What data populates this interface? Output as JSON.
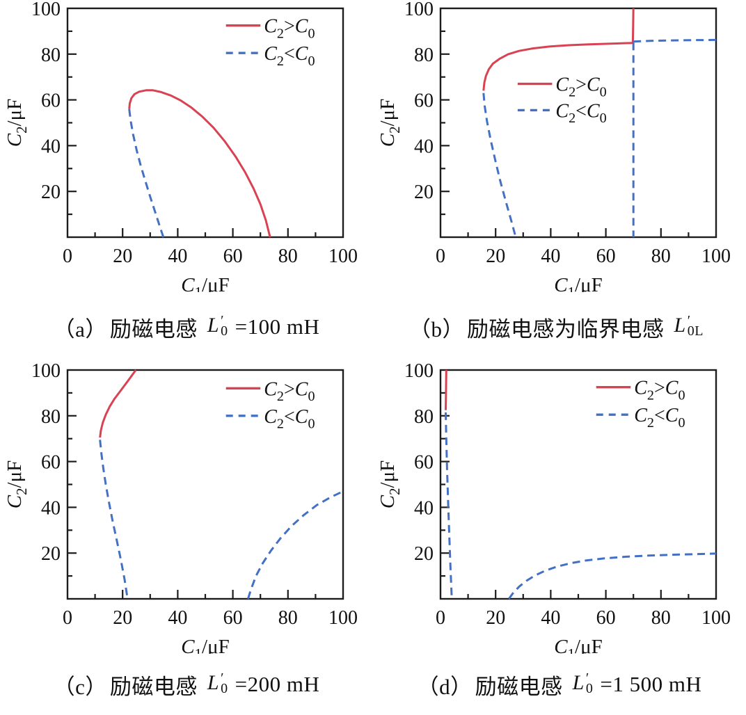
{
  "colors": {
    "red": "#d84252",
    "blue": "#4470c4",
    "axis": "#1c1c1c",
    "text": "#111111",
    "background": "#ffffff"
  },
  "axes": {
    "xlabel_parts": [
      {
        "t": "C",
        "i": 1
      },
      {
        "t": "1",
        "s": 1
      },
      {
        "t": "/μF"
      }
    ],
    "ylabel_parts": [
      {
        "t": "C",
        "i": 1
      },
      {
        "t": "2",
        "s": 1
      },
      {
        "t": "/μF"
      }
    ],
    "xticks": [
      0,
      20,
      40,
      60,
      80,
      100
    ],
    "yticks": [
      20,
      40,
      60,
      80,
      100
    ],
    "minor_step": 10,
    "xlim": [
      0,
      100
    ],
    "ylim": [
      0,
      100
    ],
    "grid": false
  },
  "legend": {
    "entries": [
      {
        "key": "gt",
        "parts": [
          {
            "t": "C",
            "i": 1
          },
          {
            "t": "2",
            "s": 1
          },
          {
            "t": ">"
          },
          {
            "t": "C",
            "i": 1
          },
          {
            "t": "0",
            "s": 1
          }
        ]
      },
      {
        "key": "lt",
        "parts": [
          {
            "t": "C",
            "i": 1
          },
          {
            "t": "2",
            "s": 1
          },
          {
            "t": "<"
          },
          {
            "t": "C",
            "i": 1
          },
          {
            "t": "0",
            "s": 1
          }
        ]
      }
    ]
  },
  "chart_data": [
    {
      "id": "a",
      "type": "line",
      "legend_pos": {
        "x": 0.575,
        "rows": [
          0.075,
          0.195
        ]
      },
      "series": [
        {
          "key": "gt",
          "color": "red",
          "dash": false,
          "paths": [
            [
              [
                22.4,
                56
              ],
              [
                22.6,
                58.5
              ],
              [
                23.2,
                60.8
              ],
              [
                24.3,
                62.5
              ],
              [
                26,
                63.6
              ],
              [
                28.5,
                64.2
              ],
              [
                31,
                64.2
              ],
              [
                34,
                63.4
              ],
              [
                37.5,
                61.9
              ],
              [
                41,
                59.8
              ],
              [
                45,
                56.6
              ],
              [
                49,
                52.6
              ],
              [
                53,
                47.8
              ],
              [
                57,
                42
              ],
              [
                61,
                35.2
              ],
              [
                64.5,
                28.3
              ],
              [
                67.5,
                21.3
              ],
              [
                70,
                14.4
              ],
              [
                72,
                7.3
              ],
              [
                73.5,
                0
              ]
            ]
          ]
        },
        {
          "key": "lt",
          "color": "blue",
          "dash": true,
          "paths": [
            [
              [
                22.4,
                56
              ],
              [
                22.9,
                51
              ],
              [
                23.8,
                45
              ],
              [
                25.1,
                38
              ],
              [
                26.6,
                31.2
              ],
              [
                28.3,
                24.3
              ],
              [
                30.1,
                17.3
              ],
              [
                32,
                10.3
              ],
              [
                33.8,
                3.6
              ],
              [
                34.8,
                0
              ]
            ]
          ]
        }
      ],
      "caption": {
        "index": "（a）",
        "text": "励磁电感",
        "sym_base": "L",
        "sym_prime": "′",
        "sym_sub": "0",
        "value": "=100 mH"
      }
    },
    {
      "id": "b",
      "type": "line",
      "legend_pos": {
        "x": 0.28,
        "rows": [
          0.33,
          0.445
        ]
      },
      "series": [
        {
          "key": "gt",
          "color": "red",
          "dash": false,
          "paths": [
            [
              [
                15.6,
                64
              ],
              [
                15.9,
                67.5
              ],
              [
                16.5,
                70.5
              ],
              [
                17.5,
                73.3
              ],
              [
                19,
                75.8
              ],
              [
                21.5,
                78
              ],
              [
                24.5,
                79.9
              ],
              [
                28.5,
                81.4
              ],
              [
                33.5,
                82.5
              ],
              [
                39.5,
                83.3
              ],
              [
                46.5,
                83.9
              ],
              [
                54,
                84.3
              ],
              [
                62,
                84.6
              ],
              [
                69.8,
                84.9
              ],
              [
                70,
                100
              ]
            ]
          ]
        },
        {
          "key": "lt",
          "color": "blue",
          "dash": true,
          "paths": [
            [
              [
                15.6,
                63
              ],
              [
                16,
                57.5
              ],
              [
                16.9,
                50.5
              ],
              [
                18.2,
                42.5
              ],
              [
                19.8,
                34
              ],
              [
                21.6,
                25
              ],
              [
                23.6,
                16
              ],
              [
                25.6,
                7.5
              ],
              [
                27.3,
                0
              ]
            ],
            [
              [
                70,
                85
              ],
              [
                70,
                0
              ]
            ],
            [
              [
                70,
                85.5
              ],
              [
                76,
                85.8
              ],
              [
                84,
                86
              ],
              [
                92,
                86.1
              ],
              [
                100,
                86.2
              ]
            ]
          ]
        }
      ],
      "caption": {
        "index": "（b）",
        "text": "励磁电感为临界电感",
        "sym_base": "L",
        "sym_prime": "′",
        "sym_sub": "0L",
        "value": ""
      }
    },
    {
      "id": "c",
      "type": "line",
      "legend_pos": {
        "x": 0.575,
        "rows": [
          0.08,
          0.2
        ]
      },
      "series": [
        {
          "key": "gt",
          "color": "red",
          "dash": false,
          "paths": [
            [
              [
                11.8,
                70.5
              ],
              [
                12.1,
                73.5
              ],
              [
                12.8,
                77
              ],
              [
                13.9,
                80.5
              ],
              [
                15.3,
                84
              ],
              [
                17.1,
                87.5
              ],
              [
                19.3,
                91
              ],
              [
                21.9,
                95.2
              ],
              [
                24.8,
                100
              ]
            ]
          ]
        },
        {
          "key": "lt",
          "color": "blue",
          "dash": true,
          "paths": [
            [
              [
                11.8,
                69.5
              ],
              [
                12.3,
                63.5
              ],
              [
                13,
                57
              ],
              [
                13.9,
                50
              ],
              [
                15,
                42.5
              ],
              [
                16.3,
                34.5
              ],
              [
                17.8,
                26
              ],
              [
                19.3,
                17.5
              ],
              [
                20.7,
                8.5
              ],
              [
                21.8,
                0
              ]
            ],
            [
              [
                65.5,
                0
              ],
              [
                66.7,
                4.5
              ],
              [
                68.4,
                10
              ],
              [
                70.8,
                15.5
              ],
              [
                73.8,
                21
              ],
              [
                77.3,
                26.5
              ],
              [
                81.3,
                31.8
              ],
              [
                85.8,
                36.7
              ],
              [
                90.5,
                41
              ],
              [
                95.3,
                44.3
              ],
              [
                100,
                47
              ]
            ]
          ]
        }
      ],
      "caption": {
        "index": "（c）",
        "text": "励磁电感",
        "sym_base": "L",
        "sym_prime": "′",
        "sym_sub": "0",
        "value": "=200 mH"
      }
    },
    {
      "id": "d",
      "type": "line",
      "legend_pos": {
        "x": 0.565,
        "rows": [
          0.075,
          0.195
        ]
      },
      "series": [
        {
          "key": "gt",
          "color": "red",
          "dash": false,
          "paths": [
            [
              [
                1.9,
                82.5
              ],
              [
                2,
                90
              ],
              [
                2.1,
                100
              ]
            ]
          ]
        },
        {
          "key": "lt",
          "color": "blue",
          "dash": true,
          "paths": [
            [
              [
                1.9,
                81.5
              ],
              [
                2.1,
                70
              ],
              [
                2.4,
                56
              ],
              [
                2.8,
                41
              ],
              [
                3.2,
                27
              ],
              [
                3.6,
                14
              ],
              [
                4,
                3
              ],
              [
                4.1,
                0
              ]
            ],
            [
              [
                24.8,
                0
              ],
              [
                26.5,
                2.8
              ],
              [
                28.6,
                5.4
              ],
              [
                31.2,
                7.9
              ],
              [
                34.3,
                10.2
              ],
              [
                38,
                12.3
              ],
              [
                42.3,
                14.1
              ],
              [
                47.3,
                15.6
              ],
              [
                53,
                16.8
              ],
              [
                59.5,
                17.7
              ],
              [
                67,
                18.4
              ],
              [
                75.5,
                18.9
              ],
              [
                85,
                19.3
              ],
              [
                100,
                19.8
              ]
            ]
          ]
        }
      ],
      "caption": {
        "index": "（d）",
        "text": "励磁电感",
        "sym_base": "L",
        "sym_prime": "′",
        "sym_sub": "0",
        "value": "=1 500 mH"
      }
    }
  ]
}
